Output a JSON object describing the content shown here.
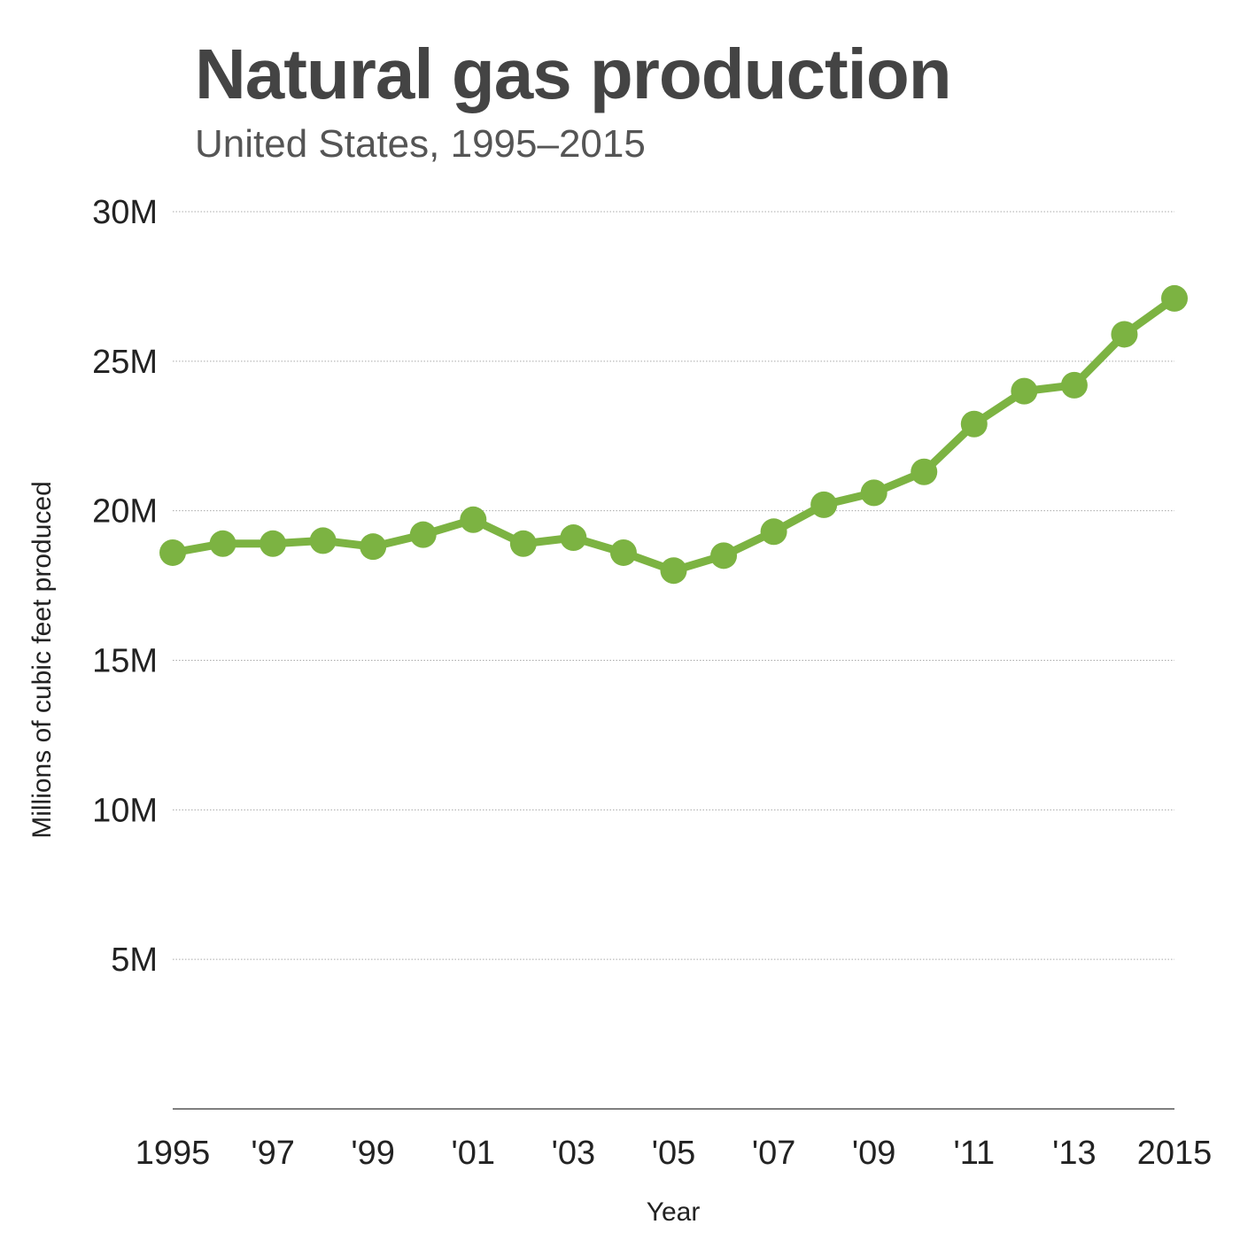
{
  "chart_data": {
    "type": "line",
    "title": "Natural gas production",
    "subtitle": "United States, 1995–2015",
    "xlabel": "Year",
    "ylabel": "Millions of cubic feet produced",
    "x": [
      1995,
      1996,
      1997,
      1998,
      1999,
      2000,
      2001,
      2002,
      2003,
      2004,
      2005,
      2006,
      2007,
      2008,
      2009,
      2010,
      2011,
      2012,
      2013,
      2014,
      2015
    ],
    "x_tick_values": [
      1995,
      1997,
      1999,
      2001,
      2003,
      2005,
      2007,
      2009,
      2011,
      2013,
      2015
    ],
    "x_tick_labels": [
      "1995",
      "'97",
      "'99",
      "'01",
      "'03",
      "'05",
      "'07",
      "'09",
      "'11",
      "'13",
      "2015"
    ],
    "y_tick_values": [
      5000000,
      10000000,
      15000000,
      20000000,
      25000000,
      30000000
    ],
    "y_tick_labels": [
      "5M",
      "10M",
      "15M",
      "20M",
      "25M",
      "30M"
    ],
    "ylim": [
      0,
      30000000
    ],
    "xlim": [
      1995,
      2015
    ],
    "grid": "horizontal dotted",
    "series": [
      {
        "values": [
          18600000,
          18900000,
          18900000,
          19000000,
          18800000,
          19200000,
          19700000,
          18900000,
          19100000,
          18600000,
          18000000,
          18500000,
          19300000,
          20200000,
          20600000,
          21300000,
          22900000,
          24000000,
          24200000,
          25900000,
          27100000
        ]
      }
    ],
    "colors": {
      "series": "#7cb342",
      "grid": "#aaaaaa",
      "axis": "#555555"
    }
  }
}
